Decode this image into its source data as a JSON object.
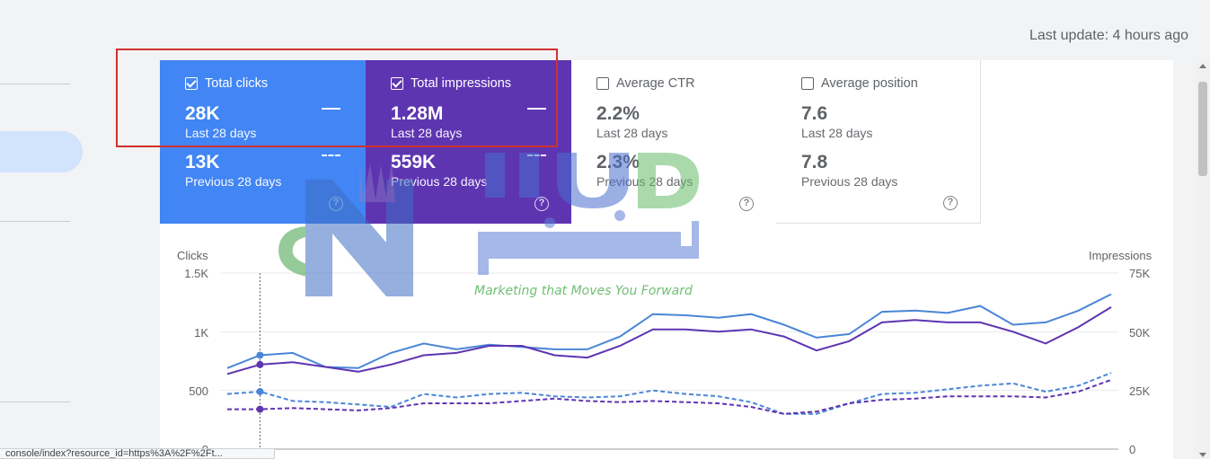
{
  "header": {
    "last_update": "Last update: 4 hours ago"
  },
  "cards": [
    {
      "label": "Total clicks",
      "checked": true,
      "value": "28K",
      "period": "Last 28 days",
      "prev_value": "13K",
      "prev_period": "Previous 28 days",
      "color": "#4285f4"
    },
    {
      "label": "Total impressions",
      "checked": true,
      "value": "1.28M",
      "period": "Last 28 days",
      "prev_value": "559K",
      "prev_period": "Previous 28 days",
      "color": "#5e35b1"
    },
    {
      "label": "Average CTR",
      "checked": false,
      "value": "2.2%",
      "period": "Last 28 days",
      "prev_value": "2.3%",
      "prev_period": "Previous 28 days",
      "help_icon": "help-circle-icon"
    },
    {
      "label": "Average position",
      "checked": false,
      "value": "7.6",
      "period": "Last 28 days",
      "prev_value": "7.8",
      "prev_period": "Previous 28 days",
      "help_icon": "help-circle-icon"
    }
  ],
  "watermark": {
    "tagline": "Marketing that Moves You Forward"
  },
  "status_bar": {
    "url": "console/index?resource_id=https%3A%2F%2Ft..."
  },
  "chart_data": {
    "type": "line",
    "y_left_label": "Clicks",
    "y_right_label": "Impressions",
    "y_left_ticks": [
      "1.5K",
      "1K",
      "500",
      "0"
    ],
    "y_right_ticks": [
      "75K",
      "50K",
      "25K",
      "0"
    ],
    "ylim_left": [
      0,
      1500
    ],
    "ylim_right": [
      0,
      75000
    ],
    "x": [
      1,
      2,
      3,
      4,
      5,
      6,
      7,
      8,
      9,
      10,
      11,
      12,
      13,
      14,
      15,
      16,
      17,
      18,
      19,
      20,
      21,
      22,
      23,
      24,
      25,
      26,
      27,
      28
    ],
    "series": [
      {
        "name": "Total clicks",
        "period": "current",
        "axis": "left",
        "style": "solid",
        "color": "#4a86d6",
        "values": [
          690,
          800,
          820,
          700,
          690,
          820,
          900,
          850,
          890,
          870,
          850,
          850,
          960,
          1150,
          1140,
          1120,
          1150,
          1060,
          950,
          980,
          1170,
          1180,
          1160,
          1220,
          1060,
          1080,
          1180,
          1320
        ]
      },
      {
        "name": "Total impressions",
        "period": "current",
        "axis": "right",
        "style": "solid",
        "color": "#5e35b1",
        "values": [
          32000,
          36000,
          37000,
          35000,
          33000,
          36000,
          40000,
          41000,
          44000,
          44000,
          40000,
          39000,
          44000,
          51000,
          51000,
          50000,
          51000,
          48000,
          42000,
          46000,
          54000,
          55000,
          54000,
          54000,
          50000,
          45000,
          52000,
          60500
        ]
      },
      {
        "name": "Total clicks",
        "period": "previous",
        "axis": "left",
        "style": "dashed",
        "color": "#4a86d6",
        "values": [
          470,
          490,
          410,
          400,
          380,
          360,
          470,
          440,
          470,
          480,
          450,
          440,
          450,
          500,
          470,
          450,
          400,
          300,
          300,
          390,
          470,
          480,
          510,
          540,
          560,
          490,
          540,
          650
        ]
      },
      {
        "name": "Total impressions",
        "period": "previous",
        "axis": "right",
        "style": "dashed",
        "color": "#5e35b1",
        "values": [
          17000,
          17000,
          17500,
          17000,
          16500,
          17500,
          19500,
          19500,
          19500,
          20500,
          21500,
          20500,
          20000,
          20500,
          20000,
          19500,
          18000,
          15000,
          16000,
          19500,
          21000,
          21500,
          22500,
          22500,
          22500,
          22000,
          24500,
          29500
        ]
      }
    ],
    "hover_index": 1,
    "grid": true
  }
}
